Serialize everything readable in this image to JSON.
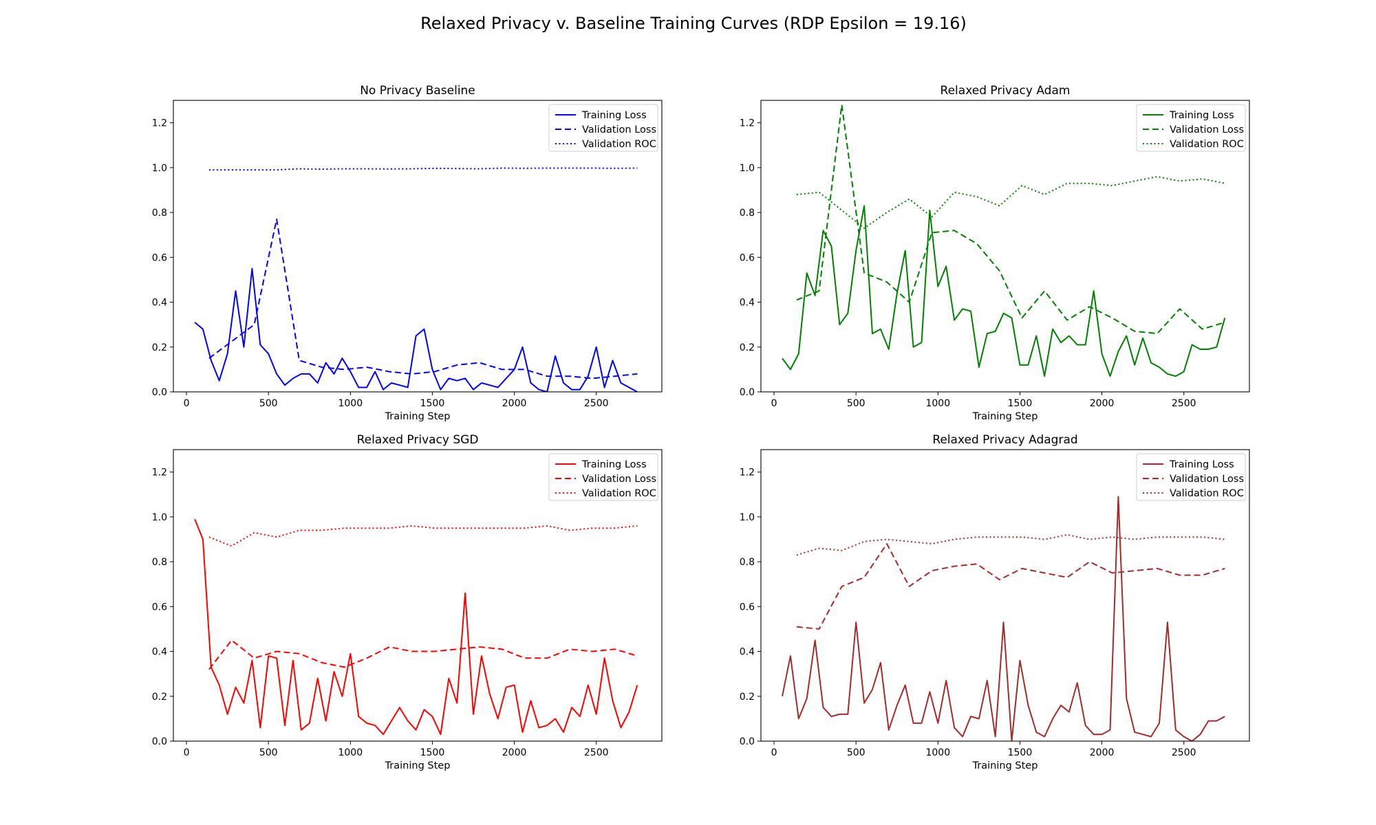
{
  "figure": {
    "title": "Relaxed Privacy v. Baseline Training Curves (RDP Epsilon = 19.16)"
  },
  "chart_data": [
    {
      "type": "line",
      "title": "No Privacy Baseline",
      "xlabel": "Training Step",
      "ylabel": "",
      "xlim": [
        -80,
        2900
      ],
      "ylim": [
        0,
        1.3
      ],
      "xticks": [
        0,
        500,
        1000,
        1500,
        2000,
        2500
      ],
      "yticks": [
        0.0,
        0.2,
        0.4,
        0.6,
        0.8,
        1.0,
        1.2
      ],
      "grid": false,
      "legend_position": "top-right",
      "color": "#0000ff",
      "series": [
        {
          "name": "Training Loss",
          "style": "solid",
          "x": [
            50,
            100,
            150,
            200,
            250,
            300,
            350,
            400,
            450,
            500,
            550,
            600,
            650,
            700,
            750,
            800,
            850,
            900,
            950,
            1000,
            1050,
            1100,
            1150,
            1200,
            1250,
            1300,
            1350,
            1400,
            1450,
            1500,
            1550,
            1600,
            1650,
            1700,
            1750,
            1800,
            1850,
            1900,
            1950,
            2000,
            2050,
            2100,
            2150,
            2200,
            2250,
            2300,
            2350,
            2400,
            2450,
            2500,
            2550,
            2600,
            2650,
            2700,
            2750
          ],
          "y": [
            0.31,
            0.28,
            0.14,
            0.05,
            0.17,
            0.45,
            0.2,
            0.55,
            0.21,
            0.17,
            0.08,
            0.03,
            0.06,
            0.08,
            0.08,
            0.04,
            0.13,
            0.08,
            0.15,
            0.09,
            0.02,
            0.02,
            0.09,
            0.01,
            0.04,
            0.03,
            0.02,
            0.25,
            0.28,
            0.1,
            0.01,
            0.06,
            0.05,
            0.06,
            0.01,
            0.04,
            0.03,
            0.02,
            0.06,
            0.1,
            0.2,
            0.04,
            0.01,
            0.0,
            0.16,
            0.04,
            0.01,
            0.01,
            0.07,
            0.2,
            0.02,
            0.14,
            0.04,
            0.02,
            0.0
          ]
        },
        {
          "name": "Validation Loss",
          "style": "dashed",
          "x": [
            138,
            413,
            550,
            688,
            825,
            963,
            1100,
            1238,
            1375,
            1513,
            1650,
            1788,
            1925,
            2063,
            2200,
            2338,
            2475,
            2613,
            2750
          ],
          "y": [
            0.15,
            0.3,
            0.77,
            0.14,
            0.11,
            0.1,
            0.11,
            0.09,
            0.08,
            0.09,
            0.12,
            0.13,
            0.1,
            0.1,
            0.07,
            0.07,
            0.06,
            0.07,
            0.08
          ]
        },
        {
          "name": "Validation ROC",
          "style": "dotted",
          "x": [
            138,
            275,
            413,
            550,
            688,
            825,
            963,
            1100,
            1238,
            1375,
            1513,
            1650,
            1788,
            1925,
            2063,
            2200,
            2338,
            2475,
            2613,
            2750
          ],
          "y": [
            0.99,
            0.99,
            0.99,
            0.99,
            0.995,
            0.993,
            0.995,
            0.995,
            0.994,
            0.995,
            0.997,
            0.996,
            0.995,
            0.998,
            0.997,
            0.998,
            0.998,
            0.998,
            0.997,
            0.998
          ]
        }
      ]
    },
    {
      "type": "line",
      "title": "Relaxed Privacy Adam",
      "xlabel": "Training Step",
      "ylabel": "",
      "xlim": [
        -80,
        2900
      ],
      "ylim": [
        0,
        1.3
      ],
      "xticks": [
        0,
        500,
        1000,
        1500,
        2000,
        2500
      ],
      "yticks": [
        0.0,
        0.2,
        0.4,
        0.6,
        0.8,
        1.0,
        1.2
      ],
      "grid": false,
      "legend_position": "top-right",
      "color": "#008000",
      "series": [
        {
          "name": "Training Loss",
          "style": "solid",
          "x": [
            50,
            100,
            150,
            200,
            250,
            300,
            350,
            400,
            450,
            500,
            550,
            600,
            650,
            700,
            750,
            800,
            850,
            900,
            950,
            1000,
            1050,
            1100,
            1150,
            1200,
            1250,
            1300,
            1350,
            1400,
            1450,
            1500,
            1550,
            1600,
            1650,
            1700,
            1750,
            1800,
            1850,
            1900,
            1950,
            2000,
            2050,
            2100,
            2150,
            2200,
            2250,
            2300,
            2350,
            2400,
            2450,
            2500,
            2550,
            2600,
            2650,
            2700,
            2750
          ],
          "y": [
            0.15,
            0.1,
            0.17,
            0.53,
            0.43,
            0.72,
            0.65,
            0.3,
            0.35,
            0.63,
            0.83,
            0.26,
            0.28,
            0.19,
            0.44,
            0.63,
            0.2,
            0.22,
            0.81,
            0.47,
            0.56,
            0.32,
            0.37,
            0.36,
            0.11,
            0.26,
            0.27,
            0.35,
            0.33,
            0.12,
            0.12,
            0.25,
            0.07,
            0.28,
            0.22,
            0.25,
            0.21,
            0.21,
            0.45,
            0.17,
            0.07,
            0.18,
            0.25,
            0.12,
            0.24,
            0.13,
            0.11,
            0.08,
            0.07,
            0.09,
            0.21,
            0.19,
            0.19,
            0.2,
            0.33
          ]
        },
        {
          "name": "Validation Loss",
          "style": "dashed",
          "x": [
            138,
            275,
            413,
            550,
            688,
            825,
            963,
            1100,
            1238,
            1375,
            1513,
            1650,
            1788,
            1925,
            2063,
            2200,
            2338,
            2475,
            2613,
            2750
          ],
          "y": [
            0.41,
            0.45,
            1.28,
            0.53,
            0.49,
            0.4,
            0.71,
            0.72,
            0.66,
            0.54,
            0.33,
            0.45,
            0.32,
            0.38,
            0.33,
            0.27,
            0.26,
            0.37,
            0.28,
            0.31
          ]
        },
        {
          "name": "Validation ROC",
          "style": "dotted",
          "x": [
            138,
            275,
            413,
            550,
            688,
            825,
            963,
            1100,
            1238,
            1375,
            1513,
            1650,
            1788,
            1925,
            2063,
            2200,
            2338,
            2475,
            2613,
            2750
          ],
          "y": [
            0.88,
            0.89,
            0.81,
            0.73,
            0.8,
            0.86,
            0.78,
            0.89,
            0.87,
            0.83,
            0.92,
            0.88,
            0.93,
            0.93,
            0.92,
            0.94,
            0.96,
            0.94,
            0.95,
            0.93
          ]
        }
      ]
    },
    {
      "type": "line",
      "title": "Relaxed Privacy SGD",
      "xlabel": "Training Step",
      "ylabel": "",
      "xlim": [
        -80,
        2900
      ],
      "ylim": [
        0,
        1.3
      ],
      "xticks": [
        0,
        500,
        1000,
        1500,
        2000,
        2500
      ],
      "yticks": [
        0.0,
        0.2,
        0.4,
        0.6,
        0.8,
        1.0,
        1.2
      ],
      "grid": false,
      "legend_position": "top-right",
      "color": "#ff0000",
      "series": [
        {
          "name": "Training Loss",
          "style": "solid",
          "x": [
            50,
            100,
            150,
            200,
            250,
            300,
            350,
            400,
            450,
            500,
            550,
            600,
            650,
            700,
            750,
            800,
            850,
            900,
            950,
            1000,
            1050,
            1100,
            1150,
            1200,
            1250,
            1300,
            1350,
            1400,
            1450,
            1500,
            1550,
            1600,
            1650,
            1700,
            1750,
            1800,
            1850,
            1900,
            1950,
            2000,
            2050,
            2100,
            2150,
            2200,
            2250,
            2300,
            2350,
            2400,
            2450,
            2500,
            2550,
            2600,
            2650,
            2700,
            2750
          ],
          "y": [
            0.99,
            0.9,
            0.33,
            0.25,
            0.12,
            0.24,
            0.17,
            0.36,
            0.06,
            0.38,
            0.37,
            0.07,
            0.36,
            0.05,
            0.08,
            0.28,
            0.09,
            0.31,
            0.2,
            0.39,
            0.11,
            0.08,
            0.07,
            0.03,
            0.09,
            0.15,
            0.09,
            0.05,
            0.14,
            0.11,
            0.03,
            0.28,
            0.17,
            0.66,
            0.12,
            0.38,
            0.21,
            0.1,
            0.24,
            0.25,
            0.04,
            0.18,
            0.06,
            0.07,
            0.1,
            0.04,
            0.15,
            0.11,
            0.25,
            0.12,
            0.37,
            0.18,
            0.06,
            0.13,
            0.25
          ]
        },
        {
          "name": "Validation Loss",
          "style": "dashed",
          "x": [
            138,
            275,
            413,
            550,
            688,
            825,
            963,
            1100,
            1238,
            1375,
            1513,
            1650,
            1788,
            1925,
            2063,
            2200,
            2338,
            2475,
            2613,
            2750
          ],
          "y": [
            0.32,
            0.45,
            0.37,
            0.4,
            0.39,
            0.35,
            0.33,
            0.37,
            0.42,
            0.4,
            0.4,
            0.41,
            0.42,
            0.41,
            0.37,
            0.37,
            0.41,
            0.4,
            0.41,
            0.38
          ]
        },
        {
          "name": "Validation ROC",
          "style": "dotted",
          "x": [
            138,
            275,
            413,
            550,
            688,
            825,
            963,
            1100,
            1238,
            1375,
            1513,
            1650,
            1788,
            1925,
            2063,
            2200,
            2338,
            2475,
            2613,
            2750
          ],
          "y": [
            0.91,
            0.87,
            0.93,
            0.91,
            0.94,
            0.94,
            0.95,
            0.95,
            0.95,
            0.96,
            0.95,
            0.95,
            0.95,
            0.95,
            0.95,
            0.96,
            0.94,
            0.95,
            0.95,
            0.96
          ]
        }
      ]
    },
    {
      "type": "line",
      "title": "Relaxed Privacy Adagrad",
      "xlabel": "Training Step",
      "ylabel": "",
      "xlim": [
        -80,
        2900
      ],
      "ylim": [
        0,
        1.3
      ],
      "xticks": [
        0,
        500,
        1000,
        1500,
        2000,
        2500
      ],
      "yticks": [
        0.0,
        0.2,
        0.4,
        0.6,
        0.8,
        1.0,
        1.2
      ],
      "grid": false,
      "legend_position": "top-right",
      "color": "#a52a2a",
      "series": [
        {
          "name": "Training Loss",
          "style": "solid",
          "x": [
            50,
            100,
            150,
            200,
            250,
            300,
            350,
            400,
            450,
            500,
            550,
            600,
            650,
            700,
            750,
            800,
            850,
            900,
            950,
            1000,
            1050,
            1100,
            1150,
            1200,
            1250,
            1300,
            1350,
            1400,
            1450,
            1500,
            1550,
            1600,
            1650,
            1700,
            1750,
            1800,
            1850,
            1900,
            1950,
            2000,
            2050,
            2100,
            2150,
            2200,
            2250,
            2300,
            2350,
            2400,
            2450,
            2500,
            2550,
            2600,
            2650,
            2700,
            2750
          ],
          "y": [
            0.2,
            0.38,
            0.1,
            0.19,
            0.45,
            0.15,
            0.11,
            0.12,
            0.12,
            0.53,
            0.17,
            0.23,
            0.35,
            0.05,
            0.16,
            0.25,
            0.08,
            0.08,
            0.22,
            0.08,
            0.27,
            0.06,
            0.02,
            0.11,
            0.1,
            0.27,
            0.02,
            0.53,
            0.0,
            0.36,
            0.16,
            0.04,
            0.02,
            0.1,
            0.16,
            0.13,
            0.26,
            0.07,
            0.03,
            0.03,
            0.05,
            1.09,
            0.19,
            0.04,
            0.03,
            0.02,
            0.08,
            0.53,
            0.05,
            0.02,
            0.0,
            0.03,
            0.09,
            0.09,
            0.11
          ]
        },
        {
          "name": "Validation Loss",
          "style": "dashed",
          "x": [
            138,
            275,
            413,
            550,
            688,
            825,
            963,
            1100,
            1238,
            1375,
            1513,
            1650,
            1788,
            1925,
            2063,
            2200,
            2338,
            2475,
            2613,
            2750
          ],
          "y": [
            0.51,
            0.5,
            0.69,
            0.73,
            0.88,
            0.69,
            0.76,
            0.78,
            0.79,
            0.72,
            0.77,
            0.75,
            0.73,
            0.8,
            0.75,
            0.76,
            0.77,
            0.74,
            0.74,
            0.77
          ]
        },
        {
          "name": "Validation ROC",
          "style": "dotted",
          "x": [
            138,
            275,
            413,
            550,
            688,
            825,
            963,
            1100,
            1238,
            1375,
            1513,
            1650,
            1788,
            1925,
            2063,
            2200,
            2338,
            2475,
            2613,
            2750
          ],
          "y": [
            0.83,
            0.86,
            0.85,
            0.89,
            0.9,
            0.89,
            0.88,
            0.9,
            0.91,
            0.91,
            0.91,
            0.9,
            0.92,
            0.9,
            0.91,
            0.9,
            0.91,
            0.91,
            0.91,
            0.9
          ]
        }
      ]
    }
  ]
}
